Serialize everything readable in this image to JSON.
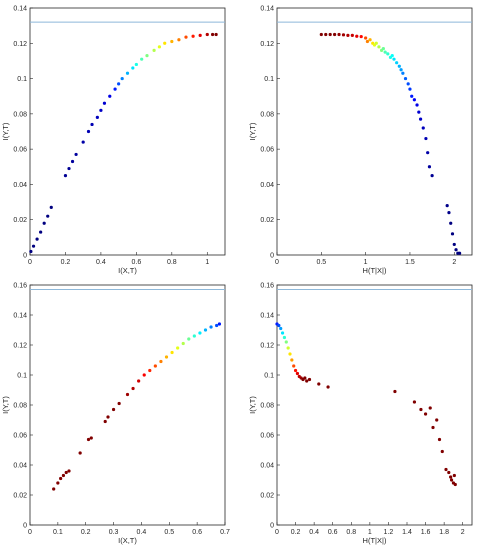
{
  "chart_data": [
    {
      "type": "scatter",
      "title": "",
      "xlabel": "I(X,T)",
      "ylabel": "I(Y,T)",
      "xlim": [
        0,
        1.1
      ],
      "ylim": [
        0,
        0.14
      ],
      "xticks": [
        0,
        0.2,
        0.4,
        0.6,
        0.8,
        1
      ],
      "xtick_labels": [
        "0",
        "0.2",
        "0.4",
        "0.6",
        "0.8",
        "1"
      ],
      "yticks": [
        0,
        0.02,
        0.04,
        0.06,
        0.08,
        0.1,
        0.12,
        0.14
      ],
      "ytick_labels": [
        "0",
        "0.02",
        "0.04",
        "0.06",
        "0.08",
        "0.1",
        "0.12",
        "0.14"
      ],
      "grid": false,
      "reference_line": {
        "y": 0.132,
        "color": "#8eb8d9"
      },
      "colormap": "jet",
      "points": [
        [
          0.005,
          0.002,
          0.0
        ],
        [
          0.02,
          0.005,
          0.0
        ],
        [
          0.04,
          0.009,
          0.0
        ],
        [
          0.06,
          0.013,
          0.0
        ],
        [
          0.08,
          0.018,
          0.0
        ],
        [
          0.1,
          0.022,
          0.0
        ],
        [
          0.12,
          0.027,
          0.0
        ],
        [
          0.2,
          0.045,
          0.02
        ],
        [
          0.22,
          0.049,
          0.02
        ],
        [
          0.24,
          0.053,
          0.03
        ],
        [
          0.26,
          0.057,
          0.03
        ],
        [
          0.3,
          0.064,
          0.04
        ],
        [
          0.33,
          0.07,
          0.05
        ],
        [
          0.35,
          0.074,
          0.05
        ],
        [
          0.38,
          0.078,
          0.06
        ],
        [
          0.4,
          0.082,
          0.07
        ],
        [
          0.42,
          0.086,
          0.08
        ],
        [
          0.45,
          0.09,
          0.1
        ],
        [
          0.48,
          0.094,
          0.15
        ],
        [
          0.5,
          0.097,
          0.2
        ],
        [
          0.52,
          0.1,
          0.25
        ],
        [
          0.55,
          0.103,
          0.3
        ],
        [
          0.58,
          0.106,
          0.35
        ],
        [
          0.6,
          0.108,
          0.4
        ],
        [
          0.63,
          0.111,
          0.45
        ],
        [
          0.66,
          0.113,
          0.5
        ],
        [
          0.7,
          0.116,
          0.55
        ],
        [
          0.73,
          0.118,
          0.6
        ],
        [
          0.76,
          0.12,
          0.65
        ],
        [
          0.8,
          0.121,
          0.7
        ],
        [
          0.84,
          0.122,
          0.75
        ],
        [
          0.88,
          0.1235,
          0.8
        ],
        [
          0.92,
          0.124,
          0.85
        ],
        [
          0.96,
          0.1245,
          0.9
        ],
        [
          1.0,
          0.125,
          0.95
        ],
        [
          1.03,
          0.125,
          1.0
        ],
        [
          1.05,
          0.125,
          1.0
        ]
      ]
    },
    {
      "type": "scatter",
      "title": "",
      "xlabel": "H(T|X|)",
      "ylabel": "I(Y,T)",
      "xlim": [
        0,
        2.2
      ],
      "ylim": [
        0,
        0.14
      ],
      "xticks": [
        0,
        0.5,
        1,
        1.5,
        2
      ],
      "xtick_labels": [
        "0",
        "0.5",
        "1",
        "1.5",
        "2"
      ],
      "yticks": [
        0,
        0.02,
        0.04,
        0.06,
        0.08,
        0.1,
        0.12,
        0.14
      ],
      "ytick_labels": [
        "0",
        "0.02",
        "0.04",
        "0.06",
        "0.08",
        "0.1",
        "0.12",
        "0.14"
      ],
      "grid": false,
      "reference_line": {
        "y": 0.132,
        "color": "#8eb8d9"
      },
      "colormap": "jet",
      "points": [
        [
          0.5,
          0.125,
          1.0
        ],
        [
          0.55,
          0.125,
          1.0
        ],
        [
          0.6,
          0.125,
          1.0
        ],
        [
          0.65,
          0.125,
          1.0
        ],
        [
          0.7,
          0.125,
          0.98
        ],
        [
          0.75,
          0.1248,
          0.97
        ],
        [
          0.8,
          0.1245,
          0.95
        ],
        [
          0.85,
          0.1245,
          0.93
        ],
        [
          0.9,
          0.124,
          0.9
        ],
        [
          0.95,
          0.1238,
          0.87
        ],
        [
          1.0,
          0.123,
          0.8
        ],
        [
          1.02,
          0.121,
          0.75
        ],
        [
          1.05,
          0.122,
          0.7
        ],
        [
          1.08,
          0.12,
          0.65
        ],
        [
          1.1,
          0.119,
          0.6
        ],
        [
          1.12,
          0.12,
          0.58
        ],
        [
          1.15,
          0.118,
          0.55
        ],
        [
          1.18,
          0.116,
          0.5
        ],
        [
          1.2,
          0.117,
          0.48
        ],
        [
          1.22,
          0.115,
          0.45
        ],
        [
          1.25,
          0.114,
          0.42
        ],
        [
          1.28,
          0.112,
          0.4
        ],
        [
          1.3,
          0.113,
          0.38
        ],
        [
          1.32,
          0.111,
          0.35
        ],
        [
          1.35,
          0.109,
          0.33
        ],
        [
          1.38,
          0.107,
          0.3
        ],
        [
          1.4,
          0.105,
          0.28
        ],
        [
          1.42,
          0.103,
          0.25
        ],
        [
          1.45,
          0.1,
          0.22
        ],
        [
          1.48,
          0.097,
          0.2
        ],
        [
          1.5,
          0.094,
          0.18
        ],
        [
          1.52,
          0.09,
          0.15
        ],
        [
          1.55,
          0.088,
          0.12
        ],
        [
          1.58,
          0.085,
          0.1
        ],
        [
          1.6,
          0.081,
          0.08
        ],
        [
          1.62,
          0.077,
          0.07
        ],
        [
          1.65,
          0.072,
          0.06
        ],
        [
          1.68,
          0.066,
          0.05
        ],
        [
          1.7,
          0.058,
          0.04
        ],
        [
          1.72,
          0.05,
          0.03
        ],
        [
          1.75,
          0.045,
          0.02
        ],
        [
          1.92,
          0.028,
          0.01
        ],
        [
          1.94,
          0.024,
          0.01
        ],
        [
          1.96,
          0.018,
          0.0
        ],
        [
          1.98,
          0.012,
          0.0
        ],
        [
          2.0,
          0.006,
          0.0
        ],
        [
          2.02,
          0.003,
          0.0
        ],
        [
          2.04,
          0.001,
          0.0
        ],
        [
          2.06,
          0.001,
          0.0
        ]
      ]
    },
    {
      "type": "scatter",
      "title": "",
      "xlabel": "I(X,T)",
      "ylabel": "I(Y,T)",
      "xlim": [
        0,
        0.7
      ],
      "ylim": [
        0,
        0.16
      ],
      "xticks": [
        0,
        0.1,
        0.2,
        0.3,
        0.4,
        0.5,
        0.6,
        0.7
      ],
      "xtick_labels": [
        "0",
        "0.1",
        "0.2",
        "0.3",
        "0.4",
        "0.5",
        "0.6",
        "0.7"
      ],
      "yticks": [
        0,
        0.02,
        0.04,
        0.06,
        0.08,
        0.1,
        0.12,
        0.14,
        0.16
      ],
      "ytick_labels": [
        "0",
        "0.02",
        "0.04",
        "0.06",
        "0.08",
        "0.1",
        "0.12",
        "0.14",
        "0.16"
      ],
      "grid": false,
      "reference_line": {
        "y": 0.157,
        "color": "#8eb8d9"
      },
      "colormap": "jet",
      "points": [
        [
          0.085,
          0.024,
          1.0
        ],
        [
          0.1,
          0.028,
          1.0
        ],
        [
          0.11,
          0.031,
          1.0
        ],
        [
          0.12,
          0.033,
          1.0
        ],
        [
          0.13,
          0.035,
          1.0
        ],
        [
          0.14,
          0.036,
          1.0
        ],
        [
          0.18,
          0.048,
          1.0
        ],
        [
          0.21,
          0.057,
          1.0
        ],
        [
          0.22,
          0.058,
          1.0
        ],
        [
          0.27,
          0.069,
          1.0
        ],
        [
          0.28,
          0.072,
          1.0
        ],
        [
          0.3,
          0.077,
          1.0
        ],
        [
          0.32,
          0.081,
          1.0
        ],
        [
          0.35,
          0.087,
          0.97
        ],
        [
          0.37,
          0.091,
          0.95
        ],
        [
          0.39,
          0.096,
          0.92
        ],
        [
          0.41,
          0.1,
          0.88
        ],
        [
          0.43,
          0.103,
          0.84
        ],
        [
          0.45,
          0.106,
          0.8
        ],
        [
          0.47,
          0.109,
          0.75
        ],
        [
          0.49,
          0.112,
          0.7
        ],
        [
          0.51,
          0.115,
          0.65
        ],
        [
          0.53,
          0.118,
          0.6
        ],
        [
          0.55,
          0.121,
          0.55
        ],
        [
          0.57,
          0.124,
          0.48
        ],
        [
          0.59,
          0.126,
          0.42
        ],
        [
          0.61,
          0.128,
          0.36
        ],
        [
          0.63,
          0.13,
          0.3
        ],
        [
          0.65,
          0.132,
          0.25
        ],
        [
          0.67,
          0.133,
          0.2
        ],
        [
          0.68,
          0.134,
          0.15
        ]
      ]
    },
    {
      "type": "scatter",
      "title": "",
      "xlabel": "H(T|X|)",
      "ylabel": "I(Y,T)",
      "xlim": [
        0,
        2.1
      ],
      "ylim": [
        0,
        0.16
      ],
      "xticks": [
        0,
        0.2,
        0.4,
        0.6,
        0.8,
        1,
        1.2,
        1.4,
        1.6,
        1.8,
        2
      ],
      "xtick_labels": [
        "0",
        "0.2",
        "0.4",
        "0.6",
        "0.8",
        "1",
        "1.2",
        "1.4",
        "1.6",
        "1.8",
        "2"
      ],
      "yticks": [
        0,
        0.02,
        0.04,
        0.06,
        0.08,
        0.1,
        0.12,
        0.14,
        0.16
      ],
      "ytick_labels": [
        "0",
        "0.02",
        "0.04",
        "0.06",
        "0.08",
        "0.1",
        "0.12",
        "0.14",
        "0.16"
      ],
      "grid": false,
      "reference_line": {
        "y": 0.157,
        "color": "#8eb8d9"
      },
      "colormap": "jet",
      "points": [
        [
          0.0,
          0.134,
          0.15
        ],
        [
          0.02,
          0.133,
          0.2
        ],
        [
          0.04,
          0.131,
          0.28
        ],
        [
          0.06,
          0.128,
          0.35
        ],
        [
          0.08,
          0.125,
          0.42
        ],
        [
          0.1,
          0.122,
          0.5
        ],
        [
          0.12,
          0.118,
          0.58
        ],
        [
          0.14,
          0.114,
          0.65
        ],
        [
          0.16,
          0.11,
          0.72
        ],
        [
          0.18,
          0.106,
          0.8
        ],
        [
          0.2,
          0.103,
          0.86
        ],
        [
          0.22,
          0.101,
          0.9
        ],
        [
          0.24,
          0.099,
          0.94
        ],
        [
          0.26,
          0.098,
          0.97
        ],
        [
          0.28,
          0.097,
          1.0
        ],
        [
          0.3,
          0.098,
          1.0
        ],
        [
          0.32,
          0.096,
          1.0
        ],
        [
          0.35,
          0.097,
          1.0
        ],
        [
          0.45,
          0.094,
          1.0
        ],
        [
          0.55,
          0.092,
          1.0
        ],
        [
          1.27,
          0.089,
          1.0
        ],
        [
          1.48,
          0.082,
          1.0
        ],
        [
          1.55,
          0.077,
          1.0
        ],
        [
          1.6,
          0.074,
          1.0
        ],
        [
          1.65,
          0.078,
          1.0
        ],
        [
          1.68,
          0.065,
          1.0
        ],
        [
          1.72,
          0.07,
          1.0
        ],
        [
          1.75,
          0.057,
          1.0
        ],
        [
          1.78,
          0.049,
          1.0
        ],
        [
          1.82,
          0.037,
          1.0
        ],
        [
          1.85,
          0.035,
          1.0
        ],
        [
          1.87,
          0.032,
          1.0
        ],
        [
          1.88,
          0.03,
          1.0
        ],
        [
          1.9,
          0.028,
          1.0
        ],
        [
          1.91,
          0.033,
          1.0
        ],
        [
          1.92,
          0.027,
          1.0
        ]
      ]
    }
  ]
}
